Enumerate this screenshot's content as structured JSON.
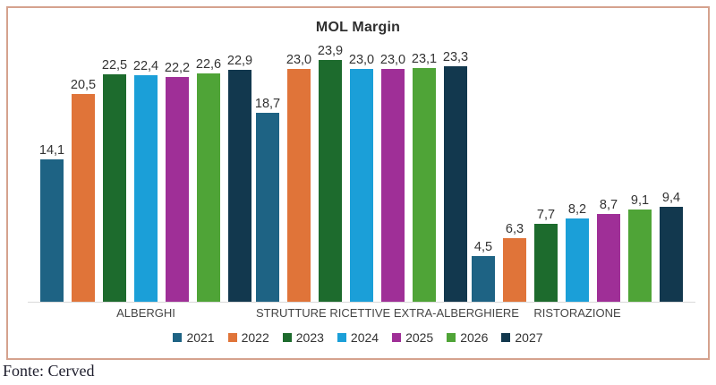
{
  "title": "MOL Margin",
  "source": "Fonte: Cerved",
  "frame_border_color": "#d5a28e",
  "axis_line_color": "#d9d9d9",
  "chart_data": {
    "type": "bar",
    "title": "MOL Margin",
    "categories": [
      "ALBERGHI",
      "STRUTTURE RICETTIVE EXTRA-ALBERGHIERE",
      "RISTORAZIONE"
    ],
    "series": [
      {
        "name": "2021",
        "color": "#1e6384",
        "values": [
          14.1,
          18.7,
          4.5
        ]
      },
      {
        "name": "2022",
        "color": "#e07439",
        "values": [
          20.5,
          23.0,
          6.3
        ]
      },
      {
        "name": "2023",
        "color": "#1d6b2d",
        "values": [
          22.5,
          23.9,
          7.7
        ]
      },
      {
        "name": "2024",
        "color": "#1b9fd8",
        "values": [
          22.4,
          23.0,
          8.2
        ]
      },
      {
        "name": "2025",
        "color": "#9f2f97",
        "values": [
          22.2,
          23.0,
          8.7
        ]
      },
      {
        "name": "2026",
        "color": "#4fa437",
        "values": [
          22.6,
          23.1,
          9.1
        ]
      },
      {
        "name": "2027",
        "color": "#12384e",
        "values": [
          22.9,
          23.3,
          9.4
        ]
      }
    ],
    "value_labels": true,
    "value_format": "decimal-comma-1",
    "xlabel": "",
    "ylabel": "",
    "ylim": [
      0,
      25.5
    ],
    "grid": false,
    "legend_position": "bottom"
  }
}
